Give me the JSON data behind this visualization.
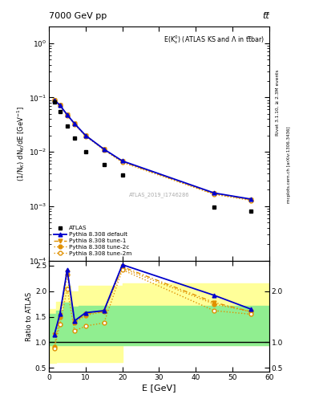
{
  "title_top": "7000 GeV pp",
  "title_top_right": "tt̅",
  "plot_title": "E(K$_s^0$) (ATLAS KS and Λ in tt̅bar)",
  "xlabel": "E [GeV]",
  "ylabel_main": "(1/N$_{K}$) dN$_{K}$/dE [GeV$^{-1}$]",
  "ylabel_ratio": "Ratio to ATLAS",
  "right_label": "Rivet 3.1.10, ≥ 2.3M events",
  "right_label2": "mcplots.cern.ch [arXiv:1306.3436]",
  "atlas_label": "ATLAS_2019_I1746286",
  "atlas_x": [
    1.5,
    3.0,
    5.0,
    7.0,
    10.0,
    15.0,
    20.0,
    45.0,
    55.0
  ],
  "atlas_y": [
    0.083,
    0.055,
    0.03,
    0.018,
    0.01,
    0.0058,
    0.0038,
    0.00095,
    0.00082
  ],
  "pythia_default_x": [
    1.5,
    3.0,
    5.0,
    7.0,
    10.0,
    15.0,
    20.0,
    45.0,
    55.0
  ],
  "pythia_default_y": [
    0.09,
    0.072,
    0.048,
    0.033,
    0.02,
    0.0112,
    0.0068,
    0.00175,
    0.00135
  ],
  "pythia_tune1_x": [
    1.5,
    3.0,
    5.0,
    7.0,
    10.0,
    15.0,
    20.0,
    45.0,
    55.0
  ],
  "pythia_tune1_y": [
    0.09,
    0.072,
    0.048,
    0.033,
    0.02,
    0.0112,
    0.0066,
    0.0017,
    0.00132
  ],
  "pythia_tune2c_x": [
    1.5,
    3.0,
    5.0,
    7.0,
    10.0,
    15.0,
    20.0,
    45.0,
    55.0
  ],
  "pythia_tune2c_y": [
    0.09,
    0.072,
    0.048,
    0.033,
    0.02,
    0.0112,
    0.0066,
    0.0017,
    0.00132
  ],
  "pythia_tune2m_x": [
    1.5,
    3.0,
    5.0,
    7.0,
    10.0,
    15.0,
    20.0,
    45.0,
    55.0
  ],
  "pythia_tune2m_y": [
    0.09,
    0.071,
    0.047,
    0.032,
    0.0195,
    0.0108,
    0.0064,
    0.00165,
    0.00128
  ],
  "ratio_default_x": [
    1.5,
    3.0,
    5.0,
    7.0,
    10.0,
    15.0,
    20.0,
    45.0,
    55.0
  ],
  "ratio_default_y": [
    1.15,
    1.55,
    2.42,
    1.42,
    1.58,
    1.62,
    2.52,
    1.92,
    1.65
  ],
  "ratio_tune1_x": [
    1.5,
    3.0,
    5.0,
    7.0,
    10.0,
    15.0,
    20.0,
    45.0,
    55.0
  ],
  "ratio_tune1_y": [
    1.15,
    1.52,
    2.38,
    1.4,
    1.56,
    1.6,
    2.48,
    1.78,
    1.6
  ],
  "ratio_tune2c_x": [
    1.5,
    3.0,
    5.0,
    7.0,
    10.0,
    15.0,
    20.0,
    45.0,
    55.0
  ],
  "ratio_tune2c_y": [
    0.92,
    1.5,
    2.32,
    1.38,
    1.53,
    1.6,
    2.45,
    1.75,
    1.6
  ],
  "ratio_tune2m_x": [
    1.5,
    3.0,
    5.0,
    7.0,
    10.0,
    15.0,
    20.0,
    45.0,
    55.0
  ],
  "ratio_tune2m_y": [
    0.88,
    1.35,
    2.05,
    1.22,
    1.32,
    1.38,
    2.42,
    1.62,
    1.55
  ],
  "color_default": "#0000cc",
  "color_tune1": "#e09000",
  "color_tune2c": "#e09000",
  "color_tune2m": "#e09000",
  "ylim_main": [
    0.0001,
    2.0
  ],
  "ylim_ratio": [
    0.42,
    2.6
  ],
  "xlim": [
    0,
    60
  ],
  "green_steps_x": [
    0,
    2,
    4,
    6,
    8,
    20,
    60
  ],
  "green_steps_low": [
    0.95,
    0.95,
    0.95,
    0.95,
    0.95,
    0.95,
    0.95
  ],
  "green_steps_high": [
    1.55,
    1.62,
    1.78,
    1.7,
    1.72,
    1.72,
    1.72
  ],
  "yellow_steps_x": [
    0,
    2,
    4,
    6,
    8,
    20,
    60
  ],
  "yellow_steps_low": [
    0.6,
    0.62,
    0.62,
    0.62,
    0.62,
    0.95,
    0.95
  ],
  "yellow_steps_high": [
    1.65,
    1.8,
    2.1,
    2.0,
    2.1,
    2.15,
    2.15
  ]
}
